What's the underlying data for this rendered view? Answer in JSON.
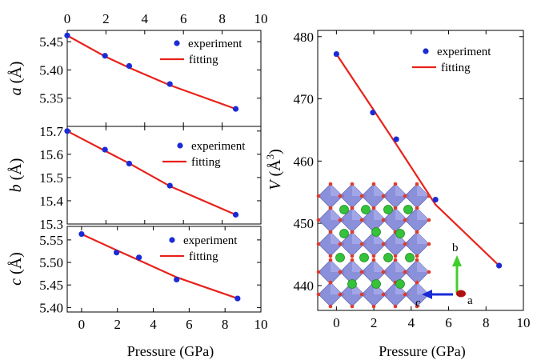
{
  "colors": {
    "experiment": "#1a2bd6",
    "fitting": "#e8211a",
    "axis": "#000000"
  },
  "chart_data": [
    {
      "type": "scatter",
      "xlabel": "",
      "ylabel_sym": "a",
      "ylabel_unit": "(Å)",
      "xlim": [
        0,
        10
      ],
      "ylim": [
        5.3,
        5.47
      ],
      "x_ticks": [
        "0",
        "2",
        "4",
        "6",
        "8",
        "10"
      ],
      "y_ticks": [
        5.35,
        5.4,
        5.45
      ],
      "y_tick_labels": [
        "5.35",
        "5.40",
        "5.45"
      ],
      "x_tick_position": "top",
      "legend": [
        "experiment",
        "fitting"
      ],
      "legend_position": "top-right",
      "series": [
        {
          "name": "experiment",
          "kind": "points",
          "x": [
            0,
            1.95,
            3.2,
            5.3,
            8.7
          ],
          "y": [
            5.461,
            5.425,
            5.407,
            5.375,
            5.331
          ]
        },
        {
          "name": "fitting",
          "kind": "line",
          "x": [
            0,
            1.95,
            3.2,
            5.3,
            8.7
          ],
          "y": [
            5.461,
            5.424,
            5.404,
            5.373,
            5.331
          ]
        }
      ]
    },
    {
      "type": "scatter",
      "xlabel": "",
      "ylabel_sym": "b",
      "ylabel_unit": "(Å)",
      "xlim": [
        0,
        10
      ],
      "ylim": [
        15.3,
        15.72
      ],
      "x_ticks": [],
      "y_ticks": [
        15.3,
        15.4,
        15.5,
        15.6,
        15.7
      ],
      "y_tick_labels": [
        "15.3",
        "15.4",
        "15.5",
        "15.6",
        "15.7"
      ],
      "legend": [
        "experiment",
        "fitting"
      ],
      "legend_position": "top-right",
      "series": [
        {
          "name": "experiment",
          "kind": "points",
          "x": [
            0,
            1.95,
            3.2,
            5.3,
            8.7
          ],
          "y": [
            15.7,
            15.62,
            15.56,
            15.465,
            15.34
          ]
        },
        {
          "name": "fitting",
          "kind": "line",
          "x": [
            0,
            1.95,
            3.2,
            5.3,
            8.7
          ],
          "y": [
            15.7,
            15.615,
            15.561,
            15.463,
            15.34
          ]
        }
      ]
    },
    {
      "type": "scatter",
      "xlabel": "Pressure (GPa)",
      "ylabel_sym": "c",
      "ylabel_unit": "(Å)",
      "xlim": [
        -0.8,
        10
      ],
      "ylim": [
        5.39,
        5.58
      ],
      "x_ticks": [
        "0",
        "2",
        "4",
        "6",
        "8",
        "10"
      ],
      "y_ticks": [
        5.4,
        5.45,
        5.5,
        5.55
      ],
      "y_tick_labels": [
        "5.40",
        "5.45",
        "5.50",
        "5.55"
      ],
      "x_tick_position": "bottom",
      "legend": [
        "experiment",
        "fitting"
      ],
      "legend_position": "top-right",
      "series": [
        {
          "name": "experiment",
          "kind": "points",
          "x": [
            0,
            1.95,
            3.2,
            5.3,
            8.7
          ],
          "y": [
            5.563,
            5.522,
            5.511,
            5.462,
            5.42
          ]
        },
        {
          "name": "fitting",
          "kind": "line",
          "x": [
            0,
            1.95,
            3.2,
            5.3,
            8.7
          ],
          "y": [
            5.563,
            5.527,
            5.505,
            5.467,
            5.42
          ]
        }
      ]
    },
    {
      "type": "scatter",
      "xlabel": "Pressure (GPa)",
      "ylabel_sym": "V",
      "ylabel_unit": "(Å3)",
      "xlim": [
        -1,
        10
      ],
      "ylim": [
        436,
        481
      ],
      "x_ticks": [
        "0",
        "2",
        "4",
        "6",
        "8",
        "10"
      ],
      "y_ticks": [
        440,
        450,
        460,
        470,
        480
      ],
      "y_tick_labels": [
        "440",
        "450",
        "460",
        "470",
        "480"
      ],
      "x_tick_position": "bottom",
      "legend": [
        "experiment",
        "fitting"
      ],
      "legend_position": "top-right",
      "inset": {
        "description_axes": [
          "a",
          "b",
          "c"
        ]
      },
      "series": [
        {
          "name": "experiment",
          "kind": "points",
          "x": [
            0,
            1.95,
            3.2,
            5.3,
            8.7
          ],
          "y": [
            477.2,
            467.8,
            463.5,
            453.8,
            443.2
          ]
        },
        {
          "name": "fitting",
          "kind": "line",
          "x": [
            0,
            1.95,
            3.2,
            5.3,
            8.7
          ],
          "y": [
            477.2,
            468.4,
            462.7,
            453.0,
            443.2
          ]
        }
      ]
    }
  ]
}
